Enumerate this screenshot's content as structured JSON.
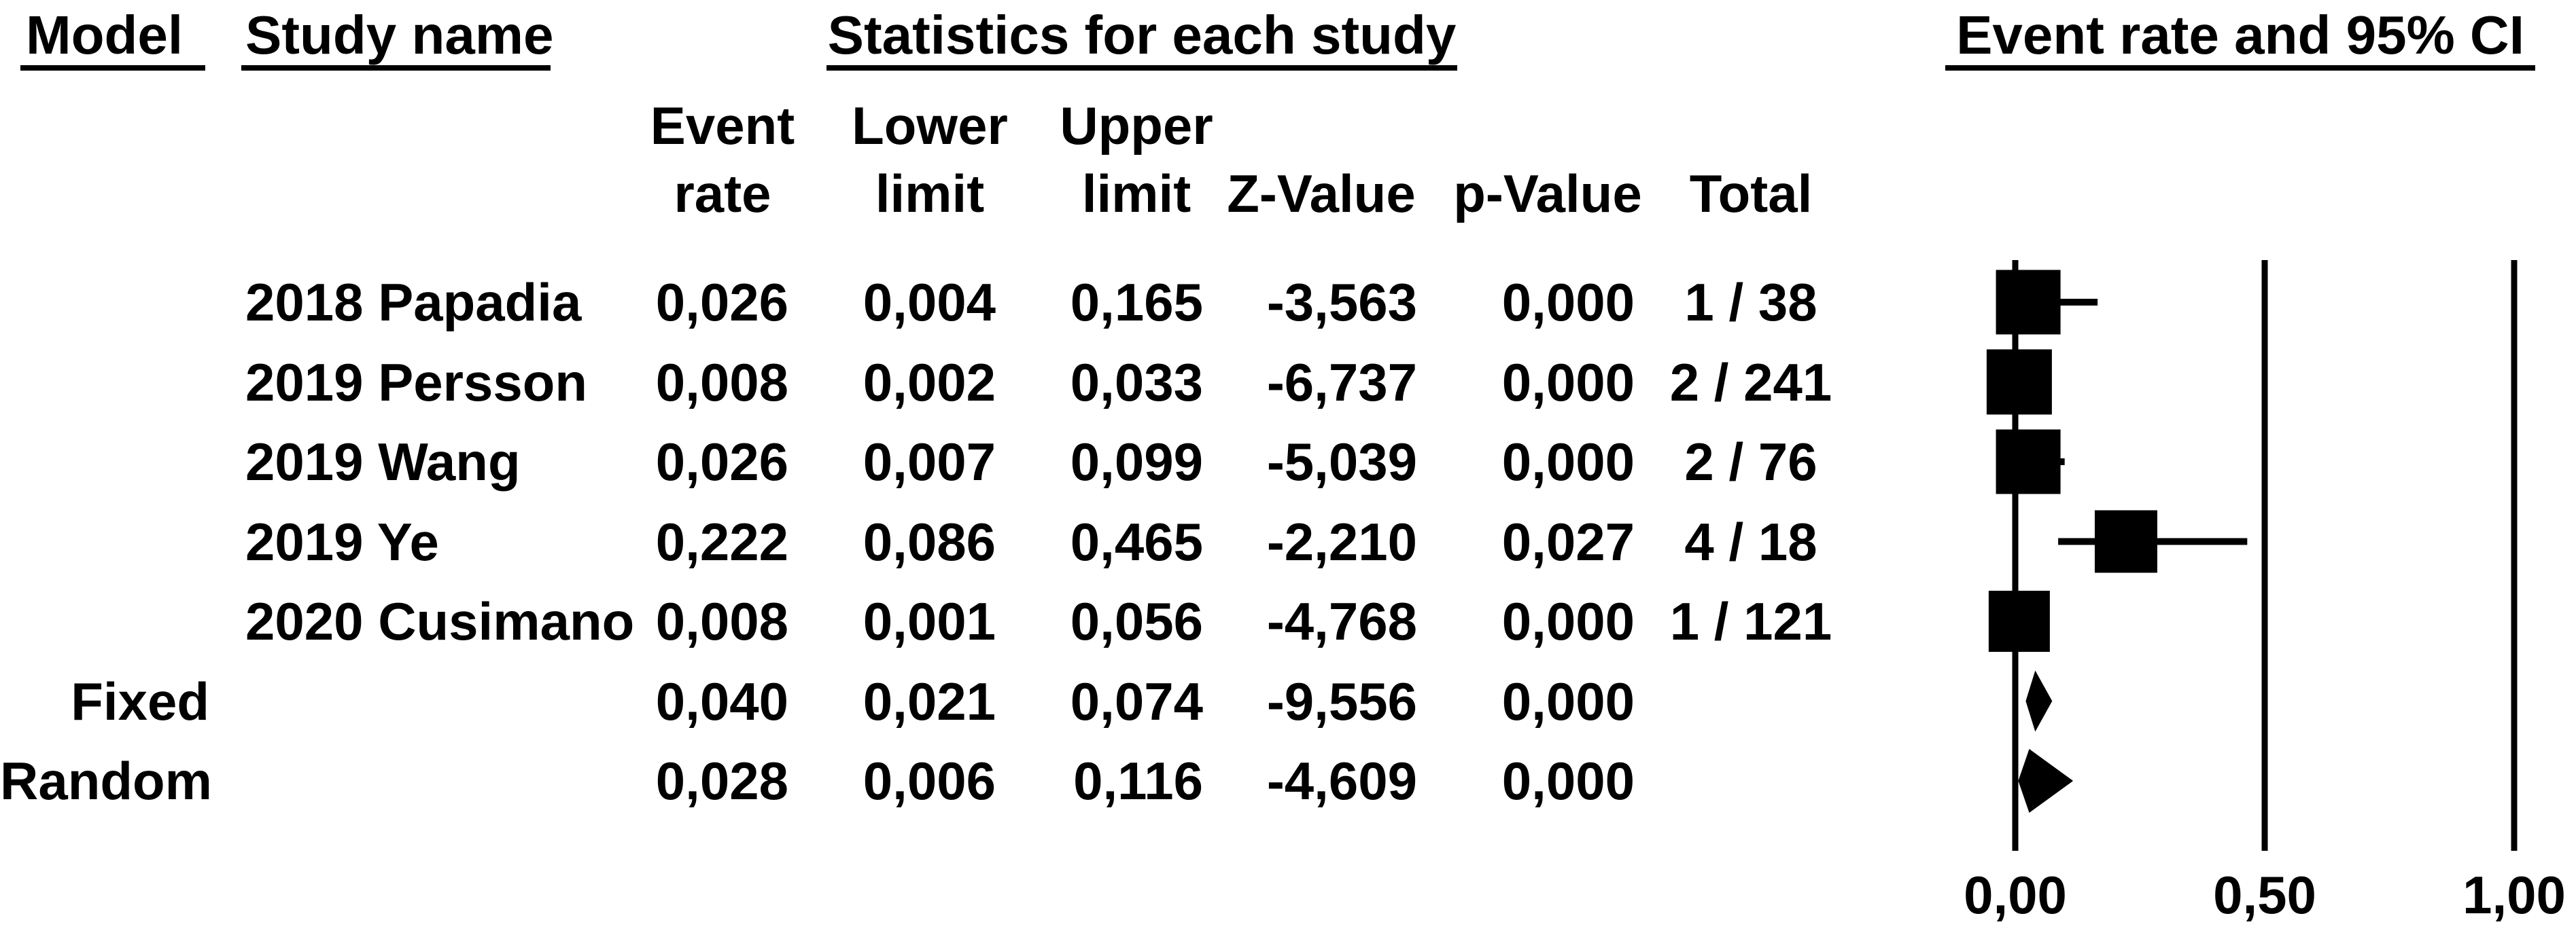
{
  "table": {
    "headers": {
      "model": "Model",
      "study": "Study name",
      "statistics": "Statistics for each study",
      "plot": "Event rate and 95% CI"
    },
    "subheaders": {
      "col1_line1": "Event",
      "col1_line2": "rate",
      "col2_line1": "Lower",
      "col2_line2": "limit",
      "col3_line1": "Upper",
      "col3_line2": "limit",
      "col4": "Z-Value",
      "col5": "p-Value",
      "col6": "Total"
    }
  },
  "chart_data": {
    "type": "forest",
    "title": "Event rate and 95% CI",
    "x_axis": {
      "tick_labels": [
        "0,00",
        "0,50",
        "1,00"
      ],
      "tick_values": [
        0,
        0.5,
        1
      ],
      "range": [
        0,
        1
      ],
      "gridlines": true,
      "decimal_separator": "comma"
    },
    "colors": {
      "foreground": "#000000",
      "background": "#ffffff"
    },
    "rows": [
      {
        "kind": "study",
        "model": "",
        "study": "2018 Papadia",
        "values": {
          "rate": "0,026",
          "lower": "0,004",
          "upper": "0,165",
          "z": "-3,563",
          "p": "0,000",
          "total": "1 / 38"
        },
        "numeric": {
          "rate": 0.026,
          "lower": 0.004,
          "upper": 0.165,
          "z": -3.563,
          "p": 0.0
        },
        "marker": "square",
        "size": 95
      },
      {
        "kind": "study",
        "model": "",
        "study": "2019 Persson",
        "values": {
          "rate": "0,008",
          "lower": "0,002",
          "upper": "0,033",
          "z": "-6,737",
          "p": "0,000",
          "total": "2 / 241"
        },
        "numeric": {
          "rate": 0.008,
          "lower": 0.002,
          "upper": 0.033,
          "z": -6.737,
          "p": 0.0
        },
        "marker": "square",
        "size": 96
      },
      {
        "kind": "study",
        "model": "",
        "study": "2019 Wang",
        "values": {
          "rate": "0,026",
          "lower": "0,007",
          "upper": "0,099",
          "z": "-5,039",
          "p": "0,000",
          "total": "2 / 76"
        },
        "numeric": {
          "rate": 0.026,
          "lower": 0.007,
          "upper": 0.099,
          "z": -5.039,
          "p": 0.0
        },
        "marker": "square",
        "size": 95
      },
      {
        "kind": "study",
        "model": "",
        "study": "2019 Ye",
        "values": {
          "rate": "0,222",
          "lower": "0,086",
          "upper": "0,465",
          "z": "-2,210",
          "p": "0,027",
          "total": "4 / 18"
        },
        "numeric": {
          "rate": 0.222,
          "lower": 0.086,
          "upper": 0.465,
          "z": -2.21,
          "p": 0.027
        },
        "marker": "square",
        "size": 92
      },
      {
        "kind": "study",
        "model": "",
        "study": "2020 Cusimano",
        "values": {
          "rate": "0,008",
          "lower": "0,001",
          "upper": "0,056",
          "z": "-4,768",
          "p": "0,000",
          "total": "1 / 121"
        },
        "numeric": {
          "rate": 0.008,
          "lower": 0.001,
          "upper": 0.056,
          "z": -4.768,
          "p": 0.0
        },
        "marker": "square",
        "size": 90
      },
      {
        "kind": "summary",
        "model": "Fixed",
        "study": "",
        "values": {
          "rate": "0,040",
          "lower": "0,021",
          "upper": "0,074",
          "z": "-9,556",
          "p": "0,000",
          "total": ""
        },
        "numeric": {
          "rate": 0.04,
          "lower": 0.021,
          "upper": 0.074,
          "z": -9.556,
          "p": 0.0
        },
        "marker": "diamond",
        "half_height": 45
      },
      {
        "kind": "summary",
        "model": "Random",
        "study": "",
        "values": {
          "rate": "0,028",
          "lower": "0,006",
          "upper": "0,116",
          "z": "-4,609",
          "p": "0,000",
          "total": ""
        },
        "numeric": {
          "rate": 0.028,
          "lower": 0.006,
          "upper": 0.116,
          "z": -4.609,
          "p": 0.0
        },
        "marker": "diamond",
        "half_height": 47
      }
    ]
  }
}
